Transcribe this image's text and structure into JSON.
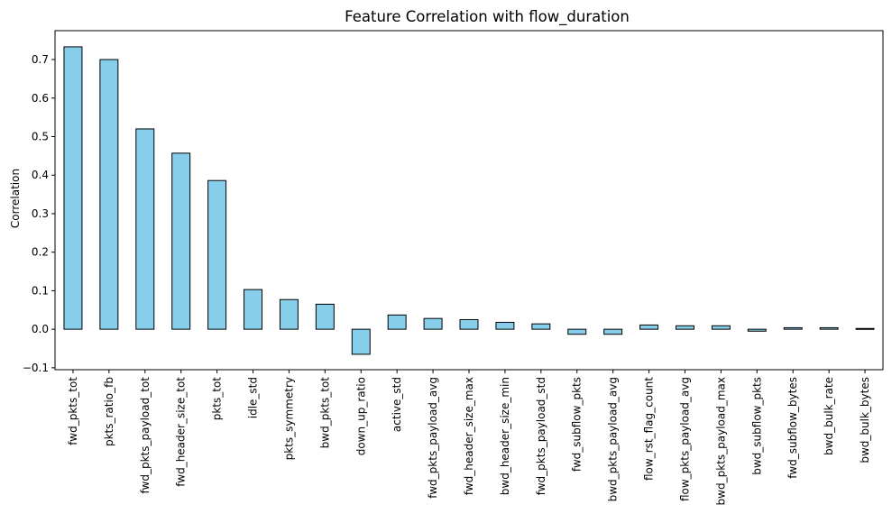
{
  "chart_data": {
    "type": "bar",
    "title": "Feature Correlation with flow_duration",
    "xlabel": "",
    "ylabel": "Correlation",
    "ylim": [
      -0.105,
      0.775
    ],
    "yticks": [
      -0.1,
      0.0,
      0.1,
      0.2,
      0.3,
      0.4,
      0.5,
      0.6,
      0.7
    ],
    "ytick_labels": [
      "−0.1",
      "0.0",
      "0.1",
      "0.2",
      "0.3",
      "0.4",
      "0.5",
      "0.6",
      "0.7"
    ],
    "grid": false,
    "legend": "none",
    "bar_color": "#87ceeb",
    "edge_color": "#000000",
    "categories": [
      "fwd_pkts_tot",
      "pkts_ratio_fb",
      "fwd_pkts_payload_tot",
      "fwd_header_size_tot",
      "pkts_tot",
      "idle_std",
      "pkts_symmetry",
      "bwd_pkts_tot",
      "down_up_ratio",
      "active_std",
      "fwd_pkts_payload_avg",
      "fwd_header_size_max",
      "bwd_header_size_min",
      "fwd_pkts_payload_std",
      "fwd_subflow_pkts",
      "bwd_pkts_payload_avg",
      "flow_rst_flag_count",
      "flow_pkts_payload_avg",
      "bwd_pkts_payload_max",
      "bwd_subflow_pkts",
      "fwd_subflow_bytes",
      "bwd_bulk_rate",
      "bwd_bulk_bytes"
    ],
    "values": [
      0.733,
      0.7,
      0.52,
      0.457,
      0.386,
      0.103,
      0.077,
      0.065,
      -0.065,
      0.037,
      0.028,
      0.025,
      0.018,
      0.014,
      -0.013,
      -0.013,
      0.011,
      0.009,
      0.009,
      -0.005,
      0.004,
      0.004,
      0.002
    ]
  }
}
